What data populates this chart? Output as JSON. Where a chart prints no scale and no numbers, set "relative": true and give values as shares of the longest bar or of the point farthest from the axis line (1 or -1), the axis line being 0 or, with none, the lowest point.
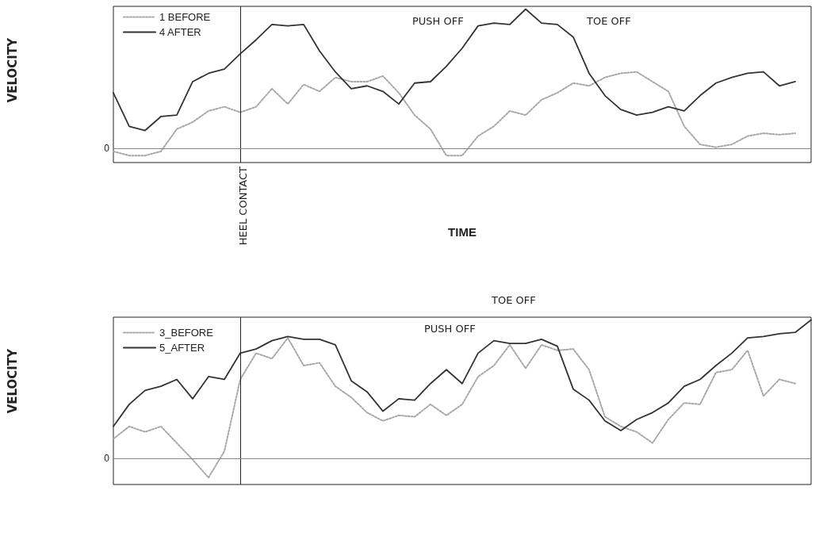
{
  "chart_data": [
    {
      "type": "line",
      "relative": true,
      "ylabel": "VELOCITY",
      "xlabel": "TIME",
      "legend": "top left",
      "marker": "none",
      "grid": false,
      "categories": [
        null,
        null,
        null,
        null,
        null,
        null,
        null,
        null,
        null,
        null,
        null,
        null,
        null,
        null,
        null,
        null,
        null,
        null,
        null,
        null,
        null,
        null,
        null,
        null,
        null,
        null,
        null,
        null,
        null,
        null,
        null,
        null,
        null,
        null,
        null,
        null,
        null,
        null,
        null,
        null,
        null,
        null,
        null,
        null,
        null
      ],
      "series": [
        {
          "name": "1 BEFORE",
          "color": "#a8a8a8",
          "line_style": "dotted",
          "values": [
            -0.02,
            -0.05,
            -0.05,
            -0.02,
            0.14,
            0.19,
            0.27,
            0.3,
            0.26,
            0.3,
            0.43,
            0.32,
            0.46,
            0.41,
            0.51,
            0.48,
            0.48,
            0.52,
            0.4,
            0.24,
            0.14,
            -0.05,
            -0.05,
            0.09,
            0.16,
            0.27,
            0.24,
            0.35,
            0.4,
            0.47,
            0.45,
            0.51,
            0.54,
            0.55,
            0.48,
            0.41,
            0.16,
            0.03,
            0.01,
            0.03,
            0.09,
            0.11,
            0.1,
            0.11,
            null
          ]
        },
        {
          "name": "4 AFTER",
          "color": "#333333",
          "line_style": "solid",
          "values": [
            0.4,
            0.16,
            0.13,
            0.23,
            0.24,
            0.48,
            0.54,
            0.57,
            0.68,
            0.78,
            0.89,
            0.88,
            0.89,
            0.7,
            0.55,
            0.43,
            0.45,
            0.41,
            0.32,
            0.47,
            0.48,
            0.59,
            0.72,
            0.88,
            0.9,
            0.89,
            1,
            0.9,
            0.89,
            0.8,
            0.54,
            0.38,
            0.28,
            0.24,
            0.26,
            0.3,
            0.27,
            0.38,
            0.47,
            0.51,
            0.54,
            0.55,
            0.45,
            0.48,
            null
          ]
        }
      ],
      "ref_lines": [
        {
          "axis": "y",
          "value": 0,
          "label": "0"
        }
      ],
      "annotations": [
        "PUSH OFF",
        "TOE OFF",
        "HEEL CONTACT"
      ]
    },
    {
      "type": "line",
      "relative": true,
      "ylabel": "VELOCITY",
      "legend": "top left",
      "marker": "none",
      "grid": false,
      "categories": [
        null,
        null,
        null,
        null,
        null,
        null,
        null,
        null,
        null,
        null,
        null,
        null,
        null,
        null,
        null,
        null,
        null,
        null,
        null,
        null,
        null,
        null,
        null,
        null,
        null,
        null,
        null,
        null,
        null,
        null,
        null,
        null,
        null,
        null,
        null,
        null,
        null,
        null,
        null,
        null,
        null,
        null,
        null,
        null,
        null
      ],
      "series": [
        {
          "name": "3_BEFORE",
          "color": "#a8a8a8",
          "line_style": "dotted",
          "values": [
            0.14,
            0.23,
            0.19,
            0.23,
            0.11,
            -0.01,
            -0.14,
            0.05,
            0.57,
            0.76,
            0.72,
            0.87,
            0.67,
            0.69,
            0.52,
            0.44,
            0.33,
            0.27,
            0.31,
            0.3,
            0.39,
            0.31,
            0.39,
            0.59,
            0.67,
            0.82,
            0.65,
            0.82,
            0.78,
            0.79,
            0.64,
            0.3,
            0.23,
            0.19,
            0.11,
            0.28,
            0.4,
            0.39,
            0.62,
            0.64,
            0.78,
            0.45,
            0.57,
            0.54,
            null
          ]
        },
        {
          "name": "5_AFTER",
          "color": "#333333",
          "line_style": "solid",
          "values": [
            0.23,
            0.39,
            0.49,
            0.52,
            0.57,
            0.43,
            0.59,
            0.57,
            0.76,
            0.79,
            0.85,
            0.88,
            0.86,
            0.86,
            0.82,
            0.56,
            0.48,
            0.34,
            0.43,
            0.42,
            0.54,
            0.64,
            0.54,
            0.76,
            0.85,
            0.83,
            0.83,
            0.86,
            0.81,
            0.5,
            0.42,
            0.27,
            0.2,
            0.28,
            0.33,
            0.4,
            0.52,
            0.57,
            0.67,
            0.76,
            0.87,
            0.88,
            0.9,
            0.91,
            1
          ]
        }
      ],
      "ref_lines": [
        {
          "axis": "y",
          "value": 0,
          "label": "0"
        }
      ],
      "annotations": [
        "PUSH OFF",
        "TOE OFF"
      ]
    }
  ]
}
